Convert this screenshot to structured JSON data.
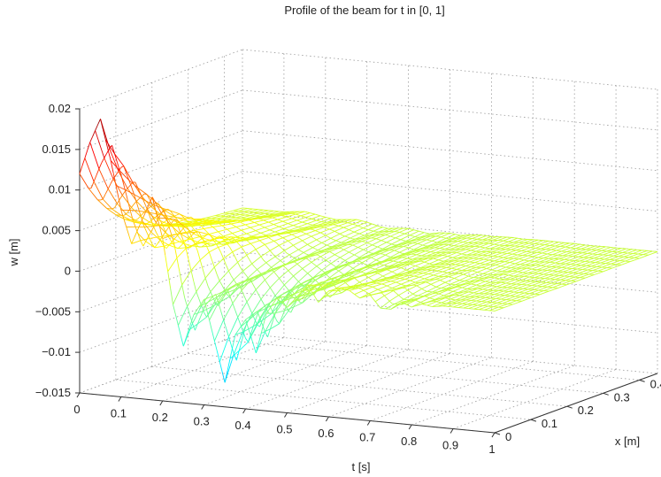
{
  "chart_data": {
    "type": "surface",
    "style": "mesh",
    "colormap": "jet",
    "title": "Profile of the beam for t in [0, 1]",
    "xlabel": "t [s]",
    "ylabel": "x [m]",
    "zlabel": "w [m]",
    "xlim": [
      0,
      1
    ],
    "ylim": [
      0,
      0.45
    ],
    "zlim": [
      -0.015,
      0.02
    ],
    "x_ticks": [
      "0",
      "0.1",
      "0.2",
      "0.3",
      "0.4",
      "0.5",
      "0.6",
      "0.7",
      "0.8",
      "0.9",
      "1"
    ],
    "y_ticks": [
      "0",
      "0.1",
      "0.2",
      "0.3",
      "0.4"
    ],
    "z_ticks": [
      "0.02",
      "0.015",
      "0.01",
      "0.005",
      "0",
      "−0.005",
      "−0.01",
      "−0.015"
    ],
    "grid": true,
    "series": [
      {
        "x": [
          0,
          0.025,
          0.05,
          0.075,
          0.1,
          0.125,
          0.15,
          0.175,
          0.2,
          0.225,
          0.25,
          0.275,
          0.3,
          0.325,
          0.35,
          0.375,
          0.4,
          0.425,
          0.45,
          0.475,
          0.5,
          0.525,
          0.55,
          0.575,
          0.6,
          0.625,
          0.65,
          0.675,
          0.7,
          0.725,
          0.75,
          0.775,
          0.8,
          0.825,
          0.85,
          0.875,
          0.9,
          0.925,
          0.95,
          0.975,
          1
        ],
        "values": [
          0.012,
          0.016,
          0.019,
          0.014,
          0.008,
          0.004,
          0.007,
          0.01,
          0.005,
          -0.003,
          -0.008,
          -0.004,
          -0.002,
          -0.007,
          -0.012,
          -0.006,
          -0.004,
          -0.008,
          -0.003,
          -0.001,
          -0.002,
          -0.0005,
          0.001,
          -0.001,
          0.0005,
          0.001,
          0.0008,
          0,
          0.0005,
          -0.001,
          -0.001,
          0,
          -0.0005,
          0,
          -0.0002,
          0,
          0,
          0,
          0,
          0,
          0
        ]
      }
    ]
  }
}
